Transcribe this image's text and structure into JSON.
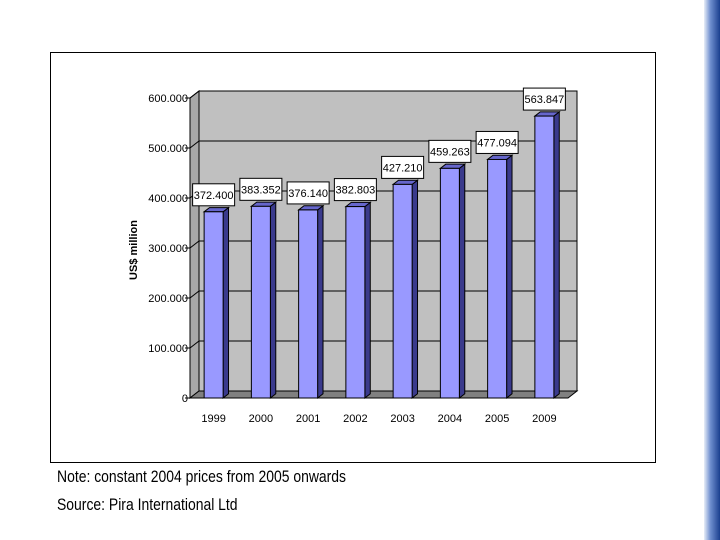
{
  "chart_data": {
    "type": "bar",
    "categories": [
      "1999",
      "2000",
      "2001",
      "2002",
      "2003",
      "2004",
      "2005",
      "2009"
    ],
    "values": [
      372.4,
      383.352,
      376.14,
      382.803,
      427.21,
      459.263,
      477.094,
      563.847
    ],
    "data_labels": [
      "372.400",
      "383.352",
      "376.140",
      "382.803",
      "427.210",
      "459.263",
      "477.094",
      "563.847"
    ],
    "ylabel": "US$ million",
    "ylim": [
      0,
      600
    ],
    "yticks": [
      0,
      100,
      200,
      300,
      400,
      500,
      600
    ],
    "ytick_labels": [
      "0",
      "100.000",
      "200.000",
      "300.000",
      "400.000",
      "500.000",
      "600.000"
    ],
    "grid": true,
    "bar_color": "#9999ff",
    "wall_color": "#c0c0c0"
  },
  "notes": {
    "note": "Note: constant 2004 prices from 2005 onwards",
    "source": "Source: Pira International Ltd"
  }
}
